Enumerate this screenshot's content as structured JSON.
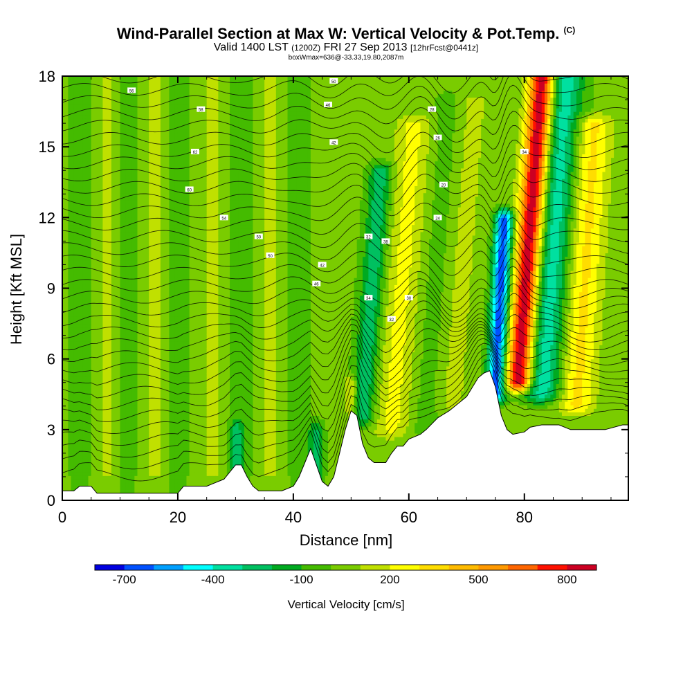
{
  "title": "Wind-Parallel Section at Max W: Vertical Velocity & Pot.Temp.",
  "title_mark": "(C)",
  "subtitle": {
    "valid": "Valid 1400 LST",
    "utc": "(1200Z)",
    "date": "FRI 27 Sep 2013",
    "forecast": "[12hrFcst@0441z]"
  },
  "box_info": "boxWmax=636@-33.33,19.80,2087m",
  "chart_data": {
    "type": "heatmap",
    "title": "Wind-Parallel Section at Max W: Vertical Velocity & Pot.Temp.",
    "xlabel": "Distance [nm]",
    "ylabel": "Height [Kft MSL]",
    "xlim": [
      0,
      98
    ],
    "ylim": [
      0,
      18
    ],
    "x_ticks": [
      0,
      20,
      40,
      60,
      80
    ],
    "y_ticks": [
      0,
      3,
      6,
      9,
      12,
      15,
      18
    ],
    "colorbar": {
      "label": "Vertical Velocity [cm/s]",
      "tick_labels": [
        "-700",
        "-400",
        "-100",
        "200",
        "500",
        "800"
      ],
      "tick_values": [
        -700,
        -400,
        -100,
        200,
        500,
        800
      ],
      "levels": [
        -800,
        -700,
        -600,
        -500,
        -400,
        -300,
        -200,
        -100,
        0,
        100,
        200,
        300,
        400,
        500,
        600,
        700,
        800,
        900
      ],
      "colors": [
        "#0000e0",
        "#0050ff",
        "#00a0ff",
        "#00ffff",
        "#00e0a0",
        "#00c060",
        "#00aa20",
        "#44bb00",
        "#7acc00",
        "#c0e000",
        "#ffff00",
        "#ffdd00",
        "#ffbb00",
        "#ff9900",
        "#ff6600",
        "#ff1100",
        "#cc0022"
      ]
    },
    "terrain": [
      [
        0,
        0.4
      ],
      [
        2,
        0.4
      ],
      [
        3,
        0.6
      ],
      [
        5,
        0.6
      ],
      [
        6,
        0.3
      ],
      [
        20,
        0.3
      ],
      [
        21,
        0.6
      ],
      [
        25,
        0.6
      ],
      [
        26,
        0.7
      ],
      [
        28,
        0.9
      ],
      [
        29,
        1.2
      ],
      [
        30,
        1.5
      ],
      [
        31,
        1.5
      ],
      [
        32,
        1.0
      ],
      [
        33,
        0.6
      ],
      [
        34,
        0.4
      ],
      [
        38,
        0.4
      ],
      [
        40,
        0.6
      ],
      [
        41,
        1.0
      ],
      [
        42,
        1.6
      ],
      [
        43,
        2.2
      ],
      [
        44,
        1.5
      ],
      [
        45,
        0.8
      ],
      [
        46,
        0.6
      ],
      [
        47,
        1.0
      ],
      [
        48,
        2.0
      ],
      [
        49,
        3.0
      ],
      [
        50,
        3.8
      ],
      [
        51,
        3.6
      ],
      [
        52,
        2.4
      ],
      [
        53,
        1.8
      ],
      [
        54,
        1.6
      ],
      [
        56,
        1.6
      ],
      [
        57,
        2.0
      ],
      [
        58,
        2.3
      ],
      [
        59,
        2.3
      ],
      [
        60,
        2.6
      ],
      [
        62,
        2.8
      ],
      [
        63,
        3.0
      ],
      [
        65,
        3.5
      ],
      [
        67,
        3.8
      ],
      [
        70,
        4.4
      ],
      [
        72,
        5.2
      ],
      [
        73,
        5.4
      ],
      [
        74,
        5.5
      ],
      [
        75,
        4.8
      ],
      [
        76,
        3.6
      ],
      [
        77,
        3.0
      ],
      [
        78,
        2.8
      ],
      [
        80,
        2.9
      ],
      [
        81,
        3.1
      ],
      [
        83,
        3.2
      ],
      [
        86,
        3.2
      ],
      [
        88,
        3.0
      ],
      [
        94,
        3.0
      ],
      [
        97,
        3.2
      ],
      [
        98,
        3.2
      ]
    ],
    "w_features": [
      {
        "x": 79,
        "z_bottom": 5.0,
        "z_top": 18,
        "tilt": 0.32,
        "w": 900,
        "width_nm": 2.2
      },
      {
        "x": 75,
        "z_bottom": 4.5,
        "z_top": 12,
        "tilt": 0.2,
        "w": -700,
        "width_nm": 1.6
      },
      {
        "x": 83,
        "z_bottom": 4.5,
        "z_top": 18,
        "tilt": 0.3,
        "w": -400,
        "width_nm": 3.2
      },
      {
        "x": 89,
        "z_bottom": 4.0,
        "z_top": 16,
        "tilt": 0.25,
        "w": 300,
        "width_nm": 3.0
      },
      {
        "x": 57,
        "z_bottom": 3.0,
        "z_top": 16,
        "tilt": 0.3,
        "w": 200,
        "width_nm": 3.0
      },
      {
        "x": 52,
        "z_bottom": 3.5,
        "z_top": 14,
        "tilt": 0.3,
        "w": -300,
        "width_nm": 2.0
      },
      {
        "x": 67,
        "z_bottom": 4.0,
        "z_top": 17,
        "tilt": 0.3,
        "w": 100,
        "width_nm": 3.5
      },
      {
        "x": 63,
        "z_bottom": 3.0,
        "z_top": 17,
        "tilt": 0.3,
        "w": -100,
        "width_nm": 2.5
      },
      {
        "x": 44,
        "z_bottom": 1.0,
        "z_top": 3.0,
        "tilt": 0.0,
        "w": -250,
        "width_nm": 1.2
      },
      {
        "x": 30,
        "z_bottom": 1.5,
        "z_top": 3.0,
        "tilt": 0.0,
        "w": -250,
        "width_nm": 1.0
      },
      {
        "x": 50,
        "z_bottom": 3.8,
        "z_top": 5.0,
        "tilt": 0.0,
        "w": 200,
        "width_nm": 1.2
      }
    ],
    "background_bands": [
      {
        "x": 3,
        "w": -100
      },
      {
        "x": 11,
        "w": -100
      },
      {
        "x": 20,
        "w": -100
      },
      {
        "x": 31,
        "w": -100
      },
      {
        "x": 41,
        "w": -100
      },
      {
        "x": 8,
        "w": 100
      },
      {
        "x": 16,
        "w": 100
      },
      {
        "x": 26,
        "w": 100
      },
      {
        "x": 36,
        "w": 100
      }
    ],
    "theta_labels": [
      "56",
      "58",
      "62",
      "60",
      "54",
      "50",
      "50",
      "42",
      "46",
      "50",
      "46",
      "42",
      "38",
      "34",
      "32",
      "30",
      "28",
      "26",
      "20",
      "24",
      "32",
      "34"
    ]
  }
}
